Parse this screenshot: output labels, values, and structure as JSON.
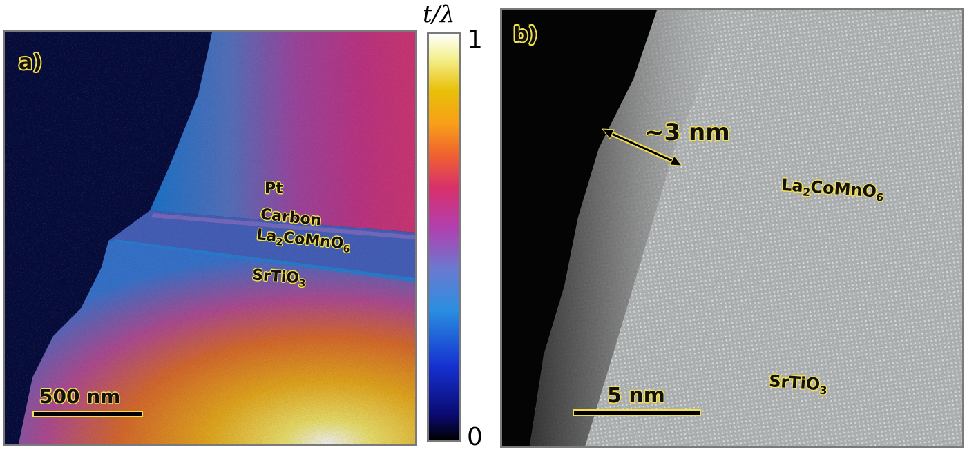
{
  "panel_a": {
    "letter": "a)",
    "labels": {
      "pt": "Pt",
      "carbon": "Carbon",
      "lcmo_main": "La",
      "lcmo_sub1": "2",
      "lcmo_mid": "CoMnO",
      "lcmo_sub2": "6",
      "sto_main": "SrTiO",
      "sto_sub": "3"
    },
    "scalebar": "500 nm"
  },
  "colorbar": {
    "title": "t/λ",
    "max": "1",
    "min": "0",
    "colors": [
      "#000000",
      "#0a0a6e",
      "#1530d0",
      "#2a8ee0",
      "#b040b0",
      "#d8306c",
      "#f8a018",
      "#e8c008",
      "#ffffff"
    ]
  },
  "panel_b": {
    "letter": "b)",
    "thickness": "~3 nm",
    "labels": {
      "lcmo_main": "La",
      "lcmo_sub1": "2",
      "lcmo_mid": "CoMnO",
      "lcmo_sub2": "6",
      "sto_main": "SrTiO",
      "sto_sub": "3"
    },
    "scalebar": "5 nm"
  }
}
